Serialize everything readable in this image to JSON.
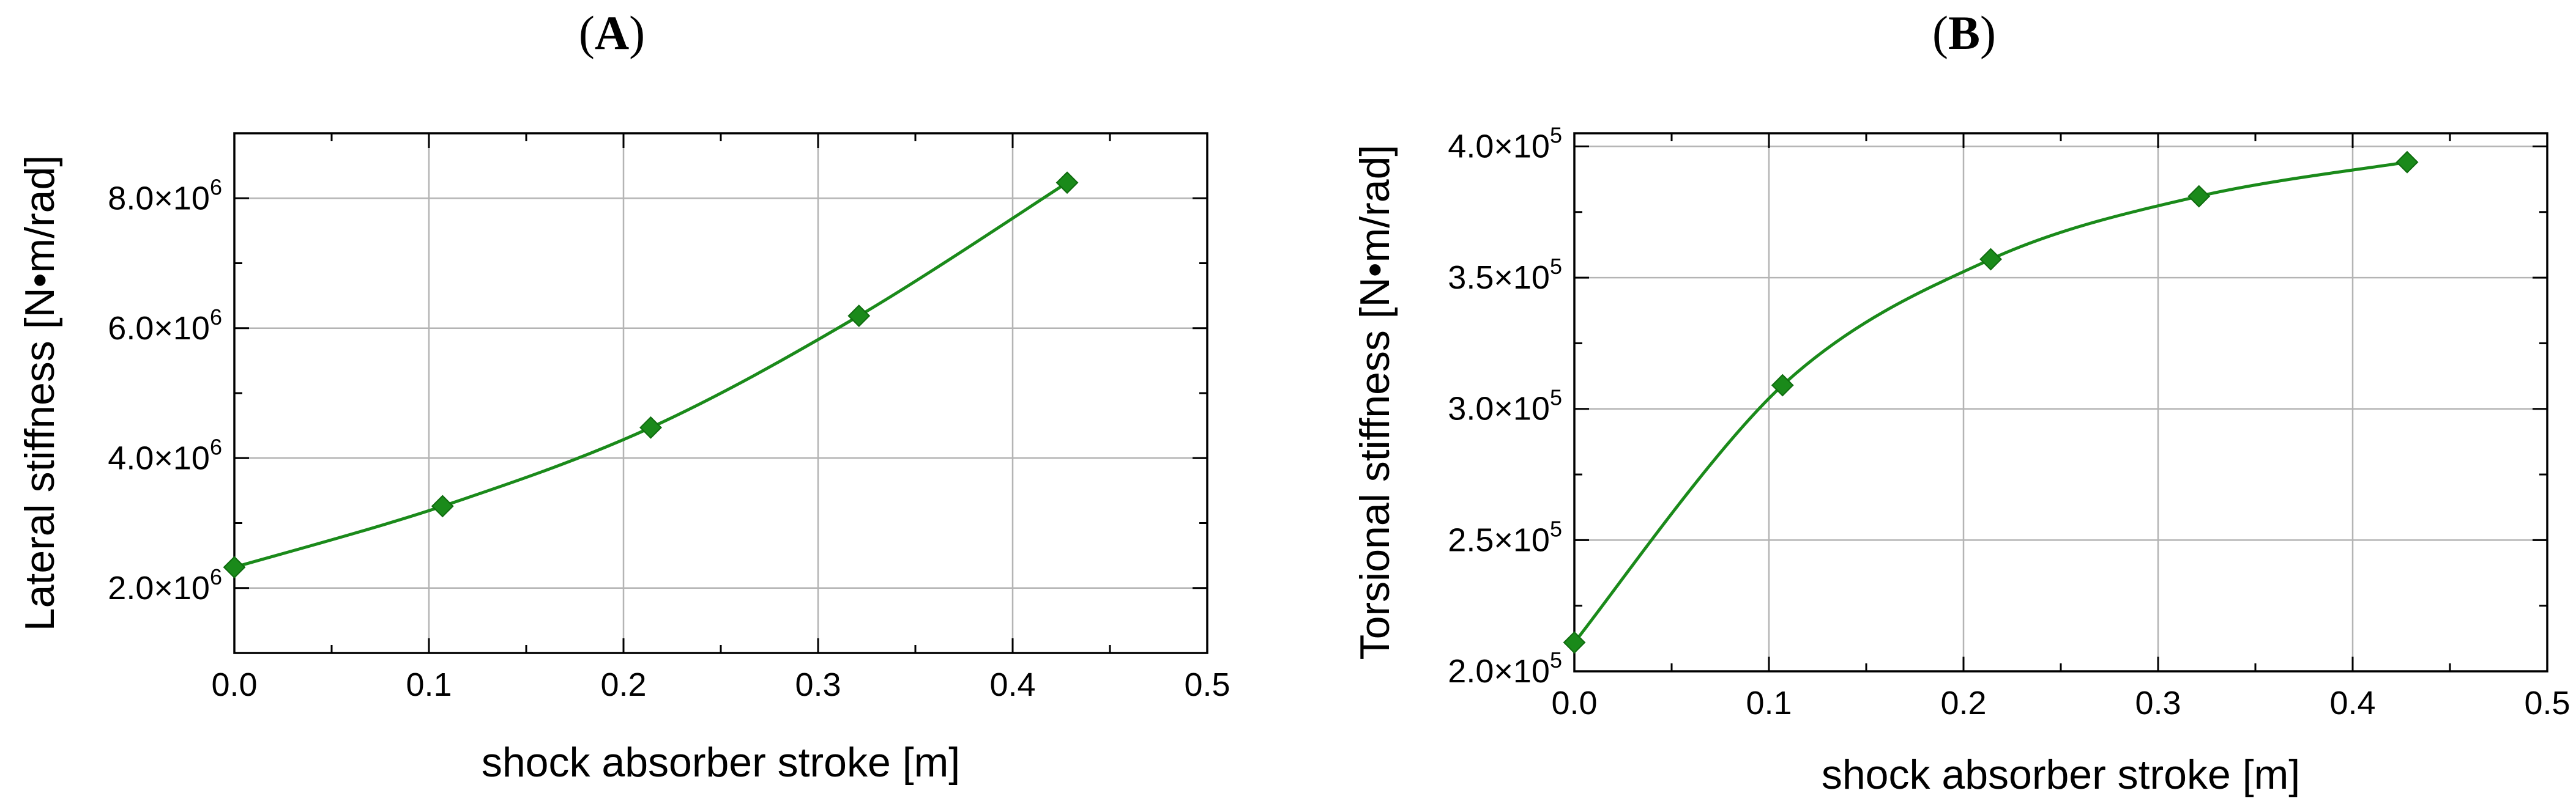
{
  "colors": {
    "series": "#1a8a1a",
    "grid": "#b4b4b4",
    "axis": "#000000"
  },
  "chart_data": [
    {
      "type": "line",
      "panel_label": "A",
      "title": "",
      "xlabel": "shock absorber stroke [m]",
      "ylabel": "Lateral stiffness [N•m/rad]",
      "xlim": [
        0.0,
        0.5
      ],
      "ylim": [
        1000000.0,
        9000000.0
      ],
      "x_ticks": [
        0.0,
        0.1,
        0.2,
        0.3,
        0.4,
        0.5
      ],
      "x_tick_labels": [
        "0.0",
        "0.1",
        "0.2",
        "0.3",
        "0.4",
        "0.5"
      ],
      "y_ticks": [
        2000000.0,
        4000000.0,
        6000000.0,
        8000000.0
      ],
      "y_tick_mantissas": [
        "2.0×10",
        "4.0×10",
        "6.0×10",
        "8.0×10"
      ],
      "y_tick_exponents": [
        "6",
        "6",
        "6",
        "6"
      ],
      "grid": true,
      "marker": "diamond",
      "series": [
        {
          "x": [
            0.0,
            0.107,
            0.214,
            0.321,
            0.428
          ],
          "values": [
            2320000.0,
            3260000.0,
            4470000.0,
            6190000.0,
            8240000.0
          ]
        }
      ]
    },
    {
      "type": "line",
      "panel_label": "B",
      "title": "",
      "xlabel": "shock absorber stroke [m]",
      "ylabel": "Torsional stiffness [N•m/rad]",
      "xlim": [
        0.0,
        0.5
      ],
      "ylim": [
        200000.0,
        405000.0
      ],
      "x_ticks": [
        0.0,
        0.1,
        0.2,
        0.3,
        0.4,
        0.5
      ],
      "x_tick_labels": [
        "0.0",
        "0.1",
        "0.2",
        "0.3",
        "0.4",
        "0.5"
      ],
      "y_ticks": [
        200000.0,
        250000.0,
        300000.0,
        350000.0,
        400000.0
      ],
      "y_tick_mantissas": [
        "2.0×10",
        "2.5×10",
        "3.0×10",
        "3.5×10",
        "4.0×10"
      ],
      "y_tick_exponents": [
        "5",
        "5",
        "5",
        "5",
        "5"
      ],
      "grid": true,
      "marker": "diamond",
      "series": [
        {
          "x": [
            0.0,
            0.107,
            0.214,
            0.321,
            0.428
          ],
          "values": [
            211000.0,
            309000.0,
            357000.0,
            381000.0,
            394000.0
          ]
        }
      ]
    }
  ]
}
